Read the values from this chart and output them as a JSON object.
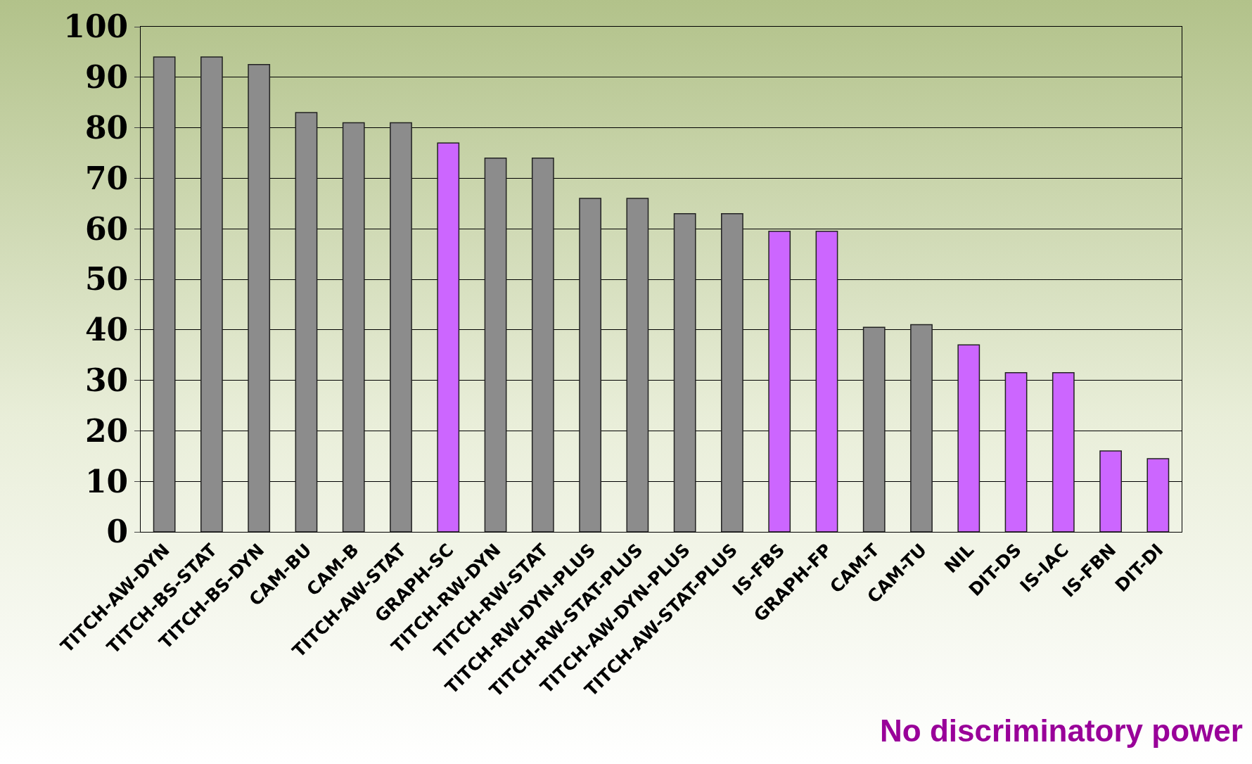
{
  "chart_data": {
    "type": "bar",
    "categories": [
      "TITCH-AW-DYN",
      "TITCH-BS-STAT",
      "TITCH-BS-DYN",
      "CAM-BU",
      "CAM-B",
      "TITCH-AW-STAT",
      "GRAPH-SC",
      "TITCH-RW-DYN",
      "TITCH-RW-STAT",
      "TITCH-RW-DYN-PLUS",
      "TITCH-RW-STAT-PLUS",
      "TITCH-AW-DYN-PLUS",
      "TITCH-AW-STAT-PLUS",
      "IS-FBS",
      "GRAPH-FP",
      "CAM-T",
      "CAM-TU",
      "NIL",
      "DIT-DS",
      "IS-IAC",
      "IS-FBN",
      "DIT-DI"
    ],
    "values": [
      94,
      94,
      92.5,
      83,
      81,
      81,
      77,
      74,
      74,
      66,
      66,
      63,
      63,
      59.5,
      59.5,
      40.5,
      41,
      37,
      31.5,
      31.5,
      16,
      14.5
    ],
    "colors": [
      "#8c8c8c",
      "#8c8c8c",
      "#8c8c8c",
      "#8c8c8c",
      "#8c8c8c",
      "#8c8c8c",
      "#cc66ff",
      "#8c8c8c",
      "#8c8c8c",
      "#8c8c8c",
      "#8c8c8c",
      "#8c8c8c",
      "#8c8c8c",
      "#cc66ff",
      "#cc66ff",
      "#8c8c8c",
      "#8c8c8c",
      "#cc66ff",
      "#cc66ff",
      "#cc66ff",
      "#cc66ff",
      "#cc66ff"
    ],
    "ylim": [
      0,
      100
    ],
    "yticks": [
      0,
      10,
      20,
      30,
      40,
      50,
      60,
      70,
      80,
      90,
      100
    ],
    "grid": "y",
    "annotations": [
      "No discriminatory power"
    ]
  }
}
